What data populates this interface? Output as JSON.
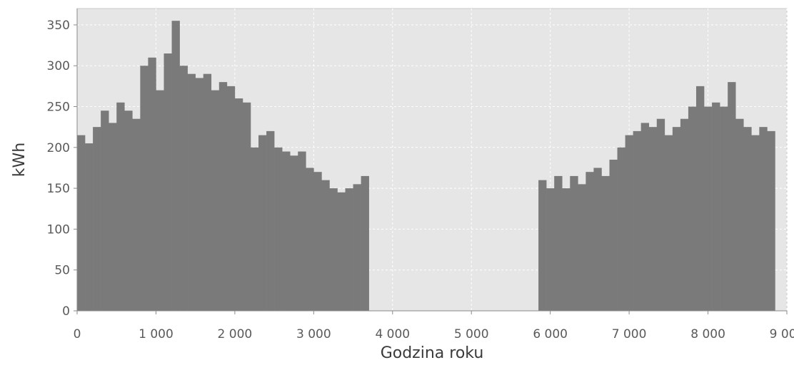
{
  "chart_data": {
    "type": "bar",
    "xlabel": "Godzina roku",
    "ylabel": "kWh",
    "xlim": [
      0,
      9000
    ],
    "ylim": [
      0,
      370
    ],
    "xticks": [
      0,
      1000,
      2000,
      3000,
      4000,
      5000,
      6000,
      7000,
      8000,
      9000
    ],
    "xtick_labels": [
      "0",
      "1 000",
      "2 000",
      "3 000",
      "4 000",
      "5 000",
      "6 000",
      "7 000",
      "8 000",
      "9 000"
    ],
    "yticks": [
      0,
      50,
      100,
      150,
      200,
      250,
      300,
      350
    ],
    "ytick_labels": [
      "0",
      "50",
      "100",
      "150",
      "200",
      "250",
      "300",
      "350"
    ],
    "grid": true,
    "bar_color": "#7a7a7a",
    "plot_background": "#e6e6e6",
    "grid_color": "#ffffff",
    "series": [
      {
        "x": [
          0,
          100,
          200,
          300,
          400,
          500,
          600,
          700,
          800,
          900,
          1000,
          1100,
          1200,
          1300,
          1400,
          1500,
          1600,
          1700,
          1800,
          1900,
          2000,
          2100,
          2200,
          2300,
          2400,
          2500,
          2600,
          2700,
          2800,
          2900,
          3000,
          3100,
          3200,
          3300,
          3400,
          3500,
          3600,
          5850,
          5950,
          6050,
          6150,
          6250,
          6350,
          6450,
          6550,
          6650,
          6750,
          6850,
          6950,
          7050,
          7150,
          7250,
          7350,
          7450,
          7550,
          7650,
          7750,
          7850,
          7950,
          8050,
          8150,
          8250,
          8350,
          8450,
          8550,
          8650,
          8750
        ],
        "values": [
          215,
          205,
          225,
          245,
          230,
          255,
          245,
          235,
          300,
          310,
          270,
          315,
          355,
          300,
          290,
          285,
          290,
          270,
          280,
          275,
          260,
          255,
          200,
          215,
          220,
          200,
          195,
          190,
          195,
          175,
          170,
          160,
          150,
          145,
          150,
          155,
          165,
          160,
          150,
          165,
          150,
          165,
          155,
          170,
          175,
          165,
          185,
          200,
          215,
          220,
          230,
          225,
          235,
          215,
          225,
          235,
          250,
          275,
          250,
          255,
          250,
          280,
          235,
          225,
          215,
          225,
          220
        ]
      }
    ]
  }
}
